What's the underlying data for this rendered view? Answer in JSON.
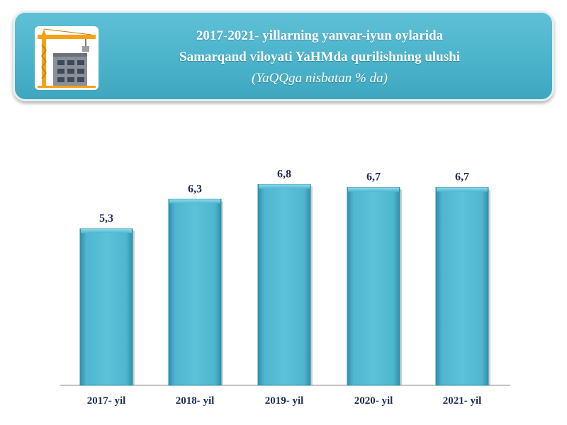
{
  "header": {
    "title_line1": "2017-2021- yillarning yanvar-iyun oylarida",
    "title_line2": "Samarqand viloyati YaHMda qurilishning ulushi",
    "subtitle": "(YaQQga nisbatan % da)",
    "icon": "construction-crane-building-icon"
  },
  "colors": {
    "banner": "#4bb3cb",
    "bar": "#4fb6d0",
    "bar_dark": "#2f8fab",
    "label_text": "#1f2d5a",
    "axis": "#888888"
  },
  "chart_data": {
    "type": "bar",
    "categories": [
      "2017- yil",
      "2018- yil",
      "2019- yil",
      "2020- yil",
      "2021- yil"
    ],
    "values": [
      5.3,
      6.3,
      6.8,
      6.7,
      6.7
    ],
    "value_labels": [
      "5,3",
      "6,3",
      "6,8",
      "6,7",
      "6,7"
    ],
    "title": "2017-2021- yillarning yanvar-iyun oylarida Samarqand viloyati YaHMda qurilishning ulushi",
    "subtitle": "(YaQQga nisbatan % da)",
    "xlabel": "",
    "ylabel": "",
    "ylim": [
      0,
      8
    ],
    "grid": false,
    "legend": "none"
  }
}
